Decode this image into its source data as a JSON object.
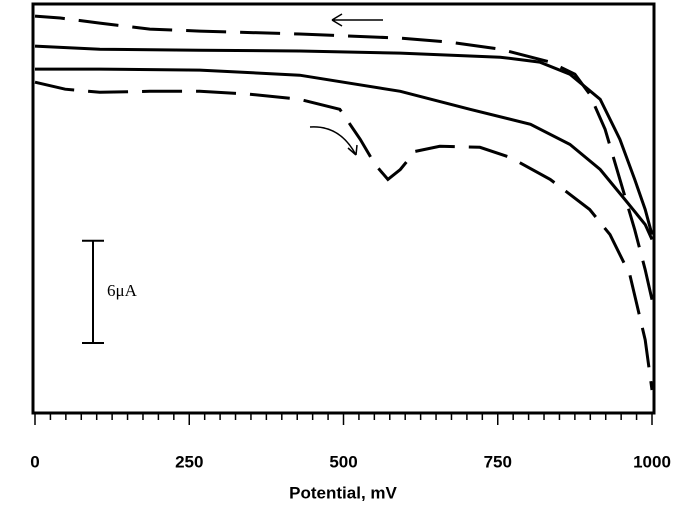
{
  "chart_data": {
    "type": "line",
    "x_label": "Potential, mV",
    "xlim": [
      0,
      1000
    ],
    "xticks": [
      0,
      250,
      500,
      750,
      1000
    ],
    "xminorticks": [
      25,
      50,
      75,
      100,
      125,
      150,
      175,
      200,
      225,
      275,
      300,
      325,
      350,
      375,
      400,
      425,
      450,
      475,
      525,
      550,
      575,
      600,
      625,
      650,
      675,
      700,
      725,
      775,
      800,
      825,
      850,
      875,
      900,
      925,
      950,
      975
    ],
    "ylim": [
      0,
      24
    ],
    "scale_bar": {
      "value": 6,
      "label": "6μA"
    },
    "series": [
      {
        "color": "#000000",
        "dashed": true,
        "x": [
          0,
          49,
          105,
          186,
          267,
          348,
          429,
          494,
          527,
          551,
          572,
          592,
          616,
          656,
          721,
          770,
          835,
          899,
          932,
          964,
          989,
          1000
        ],
        "values": [
          19.41,
          19.0,
          18.82,
          18.88,
          18.88,
          18.71,
          18.41,
          17.82,
          16.06,
          14.59,
          13.71,
          14.29,
          15.35,
          15.65,
          15.59,
          15.0,
          13.71,
          11.94,
          10.47,
          8.12,
          4.29,
          1.35
        ]
      },
      {
        "color": "#000000",
        "dashed": true,
        "x": [
          1000,
          989,
          972,
          948,
          924,
          899,
          875,
          835,
          754,
          673,
          592,
          429,
          267,
          186,
          105,
          41,
          0
        ],
        "values": [
          6.65,
          8.41,
          10.76,
          13.71,
          16.65,
          18.71,
          19.88,
          20.59,
          21.35,
          21.76,
          22.0,
          22.24,
          22.41,
          22.53,
          22.88,
          23.18,
          23.29
        ]
      },
      {
        "color": "#000000",
        "dashed": false,
        "x": [
          0,
          105,
          267,
          429,
          592,
          754,
          818,
          867,
          916,
          948,
          972,
          989,
          1000
        ],
        "values": [
          21.53,
          21.35,
          21.29,
          21.24,
          21.12,
          20.88,
          20.59,
          19.88,
          18.41,
          16.06,
          13.71,
          11.94,
          10.47
        ]
      },
      {
        "color": "#000000",
        "dashed": false,
        "x": [
          0,
          105,
          267,
          429,
          592,
          705,
          803,
          867,
          916,
          956,
          989,
          1000
        ],
        "values": [
          20.18,
          20.18,
          20.12,
          19.82,
          18.88,
          17.82,
          16.94,
          15.76,
          14.29,
          12.53,
          11.06,
          10.18
        ]
      }
    ]
  }
}
